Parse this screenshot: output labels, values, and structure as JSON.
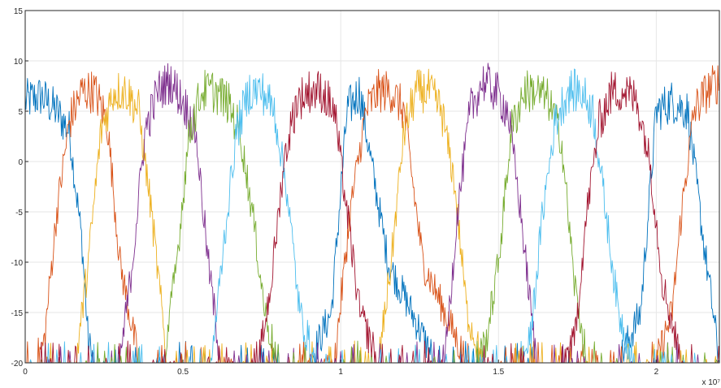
{
  "chart_data": {
    "type": "line",
    "title": "",
    "xlabel": "",
    "ylabel": "",
    "x_exponent_label": "x 10⁷",
    "xlim": [
      0,
      2.2
    ],
    "ylim": [
      -20,
      15
    ],
    "grid": true,
    "legend": "none",
    "x_ticks": [
      {
        "value": 0,
        "label": "0"
      },
      {
        "value": 0.5,
        "label": "0.5"
      },
      {
        "value": 1,
        "label": "1"
      },
      {
        "value": 1.5,
        "label": "1.5"
      },
      {
        "value": 2,
        "label": "2"
      }
    ],
    "y_ticks": [
      {
        "value": 15,
        "label": "15"
      },
      {
        "value": 10,
        "label": "10"
      },
      {
        "value": 5,
        "label": "5"
      },
      {
        "value": 0,
        "label": "0"
      },
      {
        "value": -5,
        "label": "-5"
      },
      {
        "value": -10,
        "label": "-10"
      },
      {
        "value": -15,
        "label": "-15"
      },
      {
        "value": -20,
        "label": "-20"
      }
    ],
    "series": [
      {
        "color": "#0072BD",
        "x": [
          0,
          0.05,
          0.1,
          0.14,
          0.18,
          0.2,
          0.22,
          0.3,
          0.45,
          0.6,
          0.75,
          0.78,
          0.82,
          0.9,
          0.97,
          1.02,
          1.06,
          1.08,
          1.15,
          1.3,
          1.45,
          1.6,
          1.72,
          1.76,
          1.8,
          1.88,
          1.95,
          2.0,
          2.05,
          2.1,
          2.15,
          2.18,
          2.2
        ],
        "y": [
          6,
          6.5,
          5,
          3,
          -8,
          -18,
          -20,
          -20,
          -20,
          -20,
          -20,
          -20,
          -20,
          -20,
          -15,
          5,
          7,
          3,
          -10,
          -20,
          -20,
          -20,
          -20,
          -20,
          -20,
          -20,
          -15,
          5,
          6,
          5,
          -8,
          -15,
          -20
        ]
      },
      {
        "color": "#D95319",
        "x": [
          0,
          0.03,
          0.06,
          0.1,
          0.14,
          0.18,
          0.22,
          0.26,
          0.3,
          0.36,
          0.45,
          0.6,
          0.75,
          0.85,
          0.93,
          0.98,
          1.03,
          1.08,
          1.12,
          1.16,
          1.2,
          1.22,
          1.26,
          1.4,
          1.55,
          1.7,
          1.8,
          1.85,
          1.9,
          1.95,
          2.0,
          2.05,
          2.08,
          2.12,
          2.16,
          2.2
        ],
        "y": [
          -20,
          -20,
          -18,
          -5,
          4,
          7,
          7,
          4,
          -10,
          -20,
          -20,
          -20,
          -20,
          -20,
          -20,
          -20,
          -5,
          5,
          7,
          7,
          5,
          0,
          -10,
          -20,
          -20,
          -20,
          -20,
          -20,
          -20,
          -20,
          -20,
          -15,
          -5,
          5,
          7,
          8
        ]
      },
      {
        "color": "#EDB120",
        "x": [
          0,
          0.1,
          0.16,
          0.2,
          0.24,
          0.28,
          0.32,
          0.36,
          0.4,
          0.45,
          0.6,
          0.75,
          0.9,
          1.05,
          1.12,
          1.16,
          1.2,
          1.24,
          1.28,
          1.32,
          1.36,
          1.4,
          1.45,
          1.6,
          1.75,
          1.9,
          2.05,
          2.2
        ],
        "y": [
          -20,
          -20,
          -20,
          -10,
          3,
          7,
          7,
          5,
          -5,
          -20,
          -20,
          -20,
          -20,
          -20,
          -20,
          -10,
          3,
          7,
          7,
          5,
          -2,
          -15,
          -20,
          -20,
          -20,
          -20,
          -20,
          -20
        ]
      },
      {
        "color": "#7E2F8E",
        "x": [
          0,
          0.25,
          0.3,
          0.34,
          0.38,
          0.42,
          0.46,
          0.5,
          0.54,
          0.58,
          0.62,
          0.7,
          0.85,
          1.0,
          1.15,
          1.3,
          1.33,
          1.37,
          1.41,
          1.45,
          1.49,
          1.53,
          1.57,
          1.62,
          1.75,
          1.9,
          2.05,
          2.2
        ],
        "y": [
          -20,
          -20,
          -20,
          -10,
          3,
          7,
          8,
          6,
          3,
          -10,
          -20,
          -20,
          -20,
          -20,
          -20,
          -20,
          -20,
          -5,
          5,
          8,
          7,
          5,
          -5,
          -20,
          -20,
          -20,
          -20,
          -20
        ]
      },
      {
        "color": "#77AC30",
        "x": [
          0,
          0.3,
          0.4,
          0.44,
          0.48,
          0.52,
          0.56,
          0.6,
          0.64,
          0.68,
          0.72,
          0.76,
          0.8,
          0.95,
          1.1,
          1.25,
          1.42,
          1.46,
          1.5,
          1.54,
          1.58,
          1.62,
          1.66,
          1.7,
          1.74,
          1.78,
          1.9,
          2.05,
          2.2
        ],
        "y": [
          -20,
          -20,
          -20,
          -20,
          -10,
          3,
          7,
          7,
          6,
          3,
          -5,
          -15,
          -20,
          -20,
          -20,
          -20,
          -20,
          -18,
          -10,
          3,
          7,
          7,
          6,
          2,
          -12,
          -20,
          -20,
          -20,
          -20
        ]
      },
      {
        "color": "#4DBEEE",
        "x": [
          0,
          0.4,
          0.55,
          0.59,
          0.63,
          0.67,
          0.71,
          0.75,
          0.79,
          0.83,
          0.87,
          0.92,
          1.05,
          1.2,
          1.35,
          1.5,
          1.56,
          1.6,
          1.64,
          1.68,
          1.72,
          1.76,
          1.8,
          1.84,
          1.88,
          1.93,
          2.05,
          2.2
        ],
        "y": [
          -20,
          -20,
          -20,
          -20,
          -8,
          3,
          7,
          7,
          5,
          -3,
          -15,
          -20,
          -20,
          -20,
          -20,
          -20,
          -20,
          -18,
          -5,
          4,
          7,
          7,
          5,
          -5,
          -15,
          -20,
          -20,
          -20
        ]
      },
      {
        "color": "#A2142F",
        "x": [
          0,
          0.55,
          0.7,
          0.74,
          0.78,
          0.82,
          0.86,
          0.9,
          0.94,
          0.98,
          1.02,
          1.06,
          1.12,
          1.25,
          1.4,
          1.55,
          1.7,
          1.74,
          1.78,
          1.82,
          1.86,
          1.9,
          1.94,
          1.98,
          2.02,
          2.08,
          2.2
        ],
        "y": [
          -20,
          -20,
          -20,
          -20,
          -12,
          0,
          6,
          7,
          7,
          5,
          -5,
          -15,
          -20,
          -20,
          -20,
          -20,
          -20,
          -18,
          -5,
          4,
          7,
          7,
          6,
          0,
          -12,
          -20,
          -20
        ]
      }
    ]
  }
}
